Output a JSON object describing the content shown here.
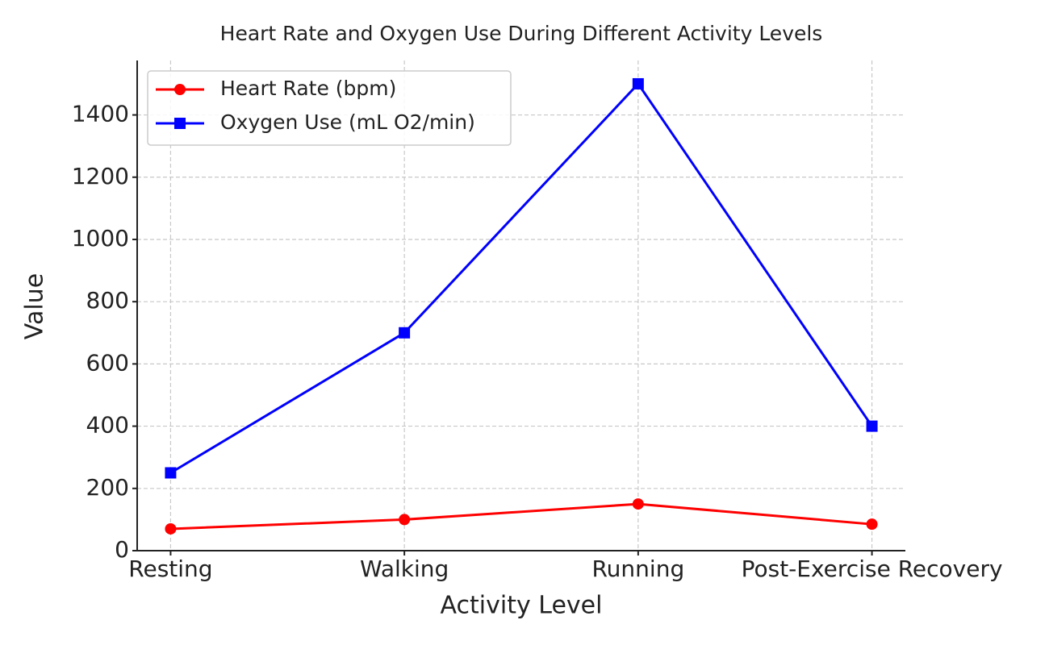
{
  "chart_data": {
    "type": "line",
    "title": "Heart Rate and Oxygen Use During Different Activity Levels",
    "x_label": "Activity Level",
    "y_label": "Value",
    "categories": [
      "Resting",
      "Walking",
      "Running",
      "Post-Exercise Recovery"
    ],
    "series": [
      {
        "name": "Heart Rate (bpm)",
        "color": "#ff0000",
        "marker": "circle",
        "values": [
          70,
          100,
          150,
          85
        ]
      },
      {
        "name": "Oxygen Use (mL O2/min)",
        "color": "#0000ff",
        "marker": "square",
        "values": [
          250,
          700,
          1500,
          400
        ]
      }
    ],
    "ylim": [
      0,
      1575
    ],
    "yticks": [
      0,
      200,
      400,
      600,
      800,
      1000,
      1200,
      1400
    ],
    "grid": true,
    "legend": "upper left"
  }
}
